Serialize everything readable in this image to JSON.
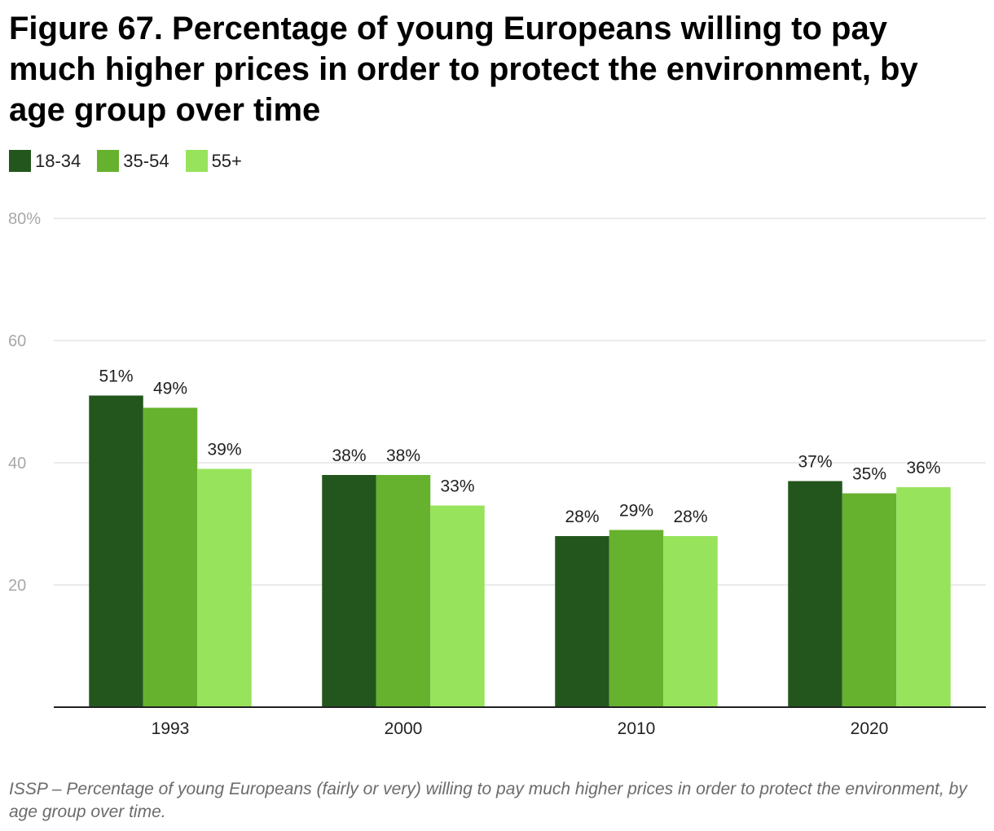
{
  "title": "Figure 67. Percentage of young Europeans willing to pay much higher prices in order to protect the environment, by age group over time",
  "note": "ISSP – Percentage of young Europeans (fairly or very) willing to pay much higher prices in order to protect the environment, by age group over time.",
  "chart_data": {
    "type": "bar",
    "title": "Figure 67. Percentage of young Europeans willing to pay much higher prices in order to protect the environment, by age group over time",
    "categories": [
      "1993",
      "2000",
      "2010",
      "2020"
    ],
    "series": [
      {
        "name": "18-34",
        "color": "#22561d",
        "values": [
          51,
          38,
          28,
          37
        ]
      },
      {
        "name": "35-54",
        "color": "#66b22f",
        "values": [
          49,
          38,
          29,
          35
        ]
      },
      {
        "name": "55+",
        "color": "#97e35c",
        "values": [
          39,
          33,
          28,
          36
        ]
      }
    ],
    "ylim": [
      0,
      80
    ],
    "yticks": [
      20,
      40,
      60,
      80
    ],
    "ytick_labels": [
      "20",
      "40",
      "60",
      "80%"
    ],
    "value_suffix": "%",
    "grid": true,
    "legend_position": "top-left",
    "xlabel": "",
    "ylabel": ""
  }
}
